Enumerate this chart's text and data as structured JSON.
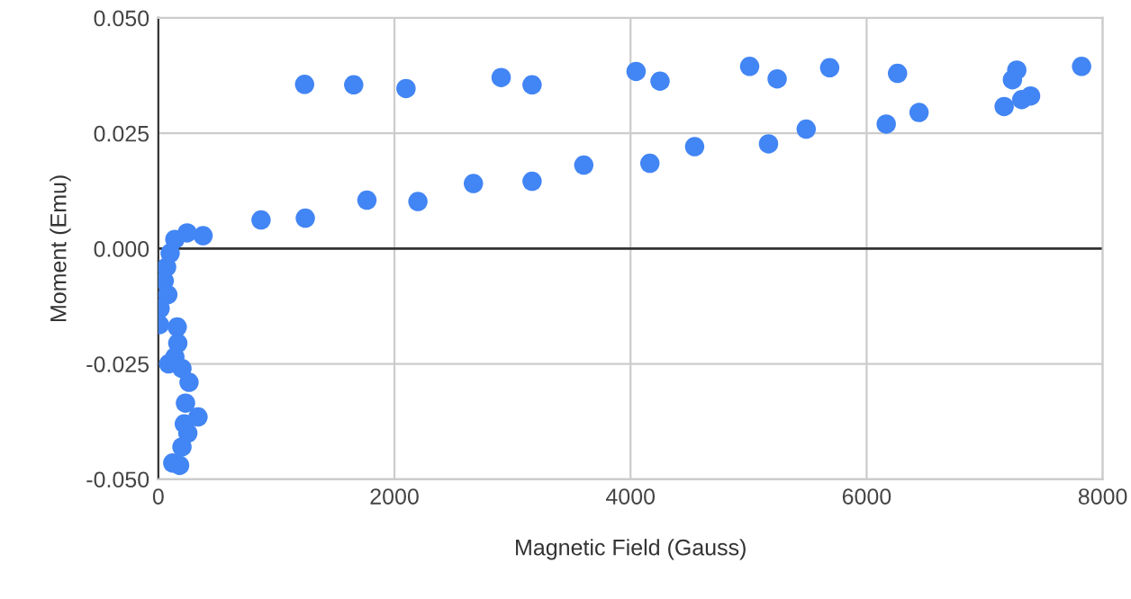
{
  "chart_data": {
    "type": "scatter",
    "xlabel": "Magnetic Field (Gauss)",
    "ylabel": "Moment (Emu)",
    "series": [
      {
        "color": "#4285f4",
        "x": [
          1239,
          1655,
          2098,
          2904,
          3166,
          4047,
          4250,
          5009,
          5242,
          5687,
          6262,
          7272,
          7235,
          7821,
          7165,
          7314,
          7389,
          6444,
          6166,
          5488,
          5169,
          4543,
          4164,
          3604,
          3166,
          2669,
          2199,
          1767,
          1245,
          870,
          379,
          244,
          140,
          100,
          70,
          50,
          15,
          10,
          80,
          160,
          165,
          87,
          140,
          200,
          260,
          230,
          336,
          220,
          250,
          200,
          122,
          180
        ],
        "values": [
          0.0356,
          0.0355,
          0.0347,
          0.0371,
          0.0355,
          0.0384,
          0.0363,
          0.0395,
          0.0368,
          0.0392,
          0.038,
          0.0387,
          0.0366,
          0.0395,
          0.0308,
          0.0323,
          0.0331,
          0.0295,
          0.027,
          0.0259,
          0.0227,
          0.0221,
          0.0185,
          0.0181,
          0.0146,
          0.0141,
          0.0102,
          0.0105,
          0.0066,
          0.0062,
          0.0028,
          0.0034,
          0.002,
          -0.001,
          -0.004,
          -0.007,
          -0.013,
          -0.0165,
          -0.01,
          -0.017,
          -0.0205,
          -0.025,
          -0.0235,
          -0.026,
          -0.029,
          -0.0335,
          -0.0365,
          -0.038,
          -0.04,
          -0.043,
          -0.0465,
          -0.047
        ]
      }
    ],
    "xlim": [
      0,
      8000
    ],
    "xticks": [
      0,
      2000,
      4000,
      6000,
      8000
    ],
    "ylim": [
      -0.05,
      0.05
    ],
    "yticks": [
      {
        "value": -0.05,
        "label": "-0.050"
      },
      {
        "value": -0.025,
        "label": "-0.025"
      },
      {
        "value": 0,
        "label": "0.000"
      },
      {
        "value": 0.025,
        "label": "0.025"
      },
      {
        "value": 0.05,
        "label": "0.050"
      }
    ],
    "ref_lines": [
      {
        "axis": "y",
        "value": 0,
        "label": null,
        "color": "#333333"
      }
    ],
    "grid": true,
    "marker": "circle",
    "legend": false
  }
}
